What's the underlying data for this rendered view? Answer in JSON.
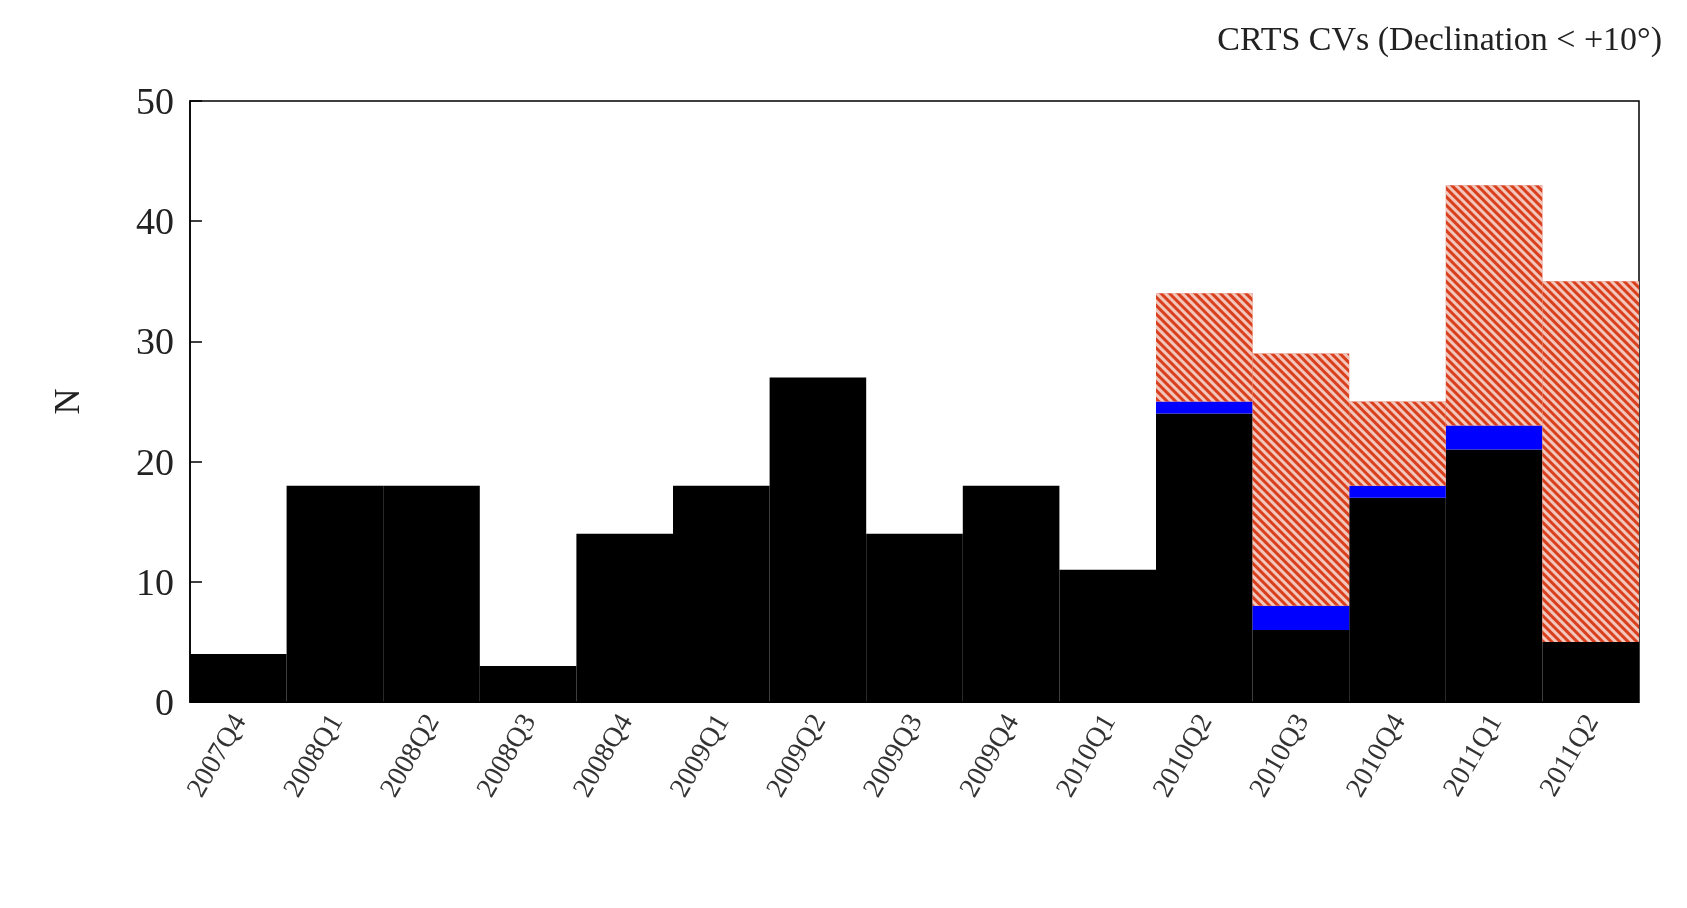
{
  "chart_data": {
    "type": "bar",
    "title": "CRTS CVs (Declination < +10°)",
    "ylabel": "N",
    "stacked": true,
    "grid": false,
    "categories": [
      "2007Q4",
      "2008Q1",
      "2008Q2",
      "2008Q3",
      "2008Q4",
      "2009Q1",
      "2009Q2",
      "2009Q3",
      "2009Q4",
      "2010Q1",
      "2010Q2",
      "2010Q3",
      "2010Q4",
      "2011Q1",
      "2011Q2"
    ],
    "series": [
      {
        "color": "#000000",
        "values": [
          4,
          18,
          18,
          3,
          14,
          18,
          27,
          14,
          18,
          11,
          24,
          6,
          17,
          21,
          5
        ]
      },
      {
        "color": "#0000ff",
        "values": [
          0,
          0,
          0,
          0,
          0,
          0,
          0,
          0,
          0,
          0,
          1,
          2,
          1,
          2,
          0
        ]
      },
      {
        "color": "#d8401e",
        "values": [
          0,
          0,
          0,
          0,
          0,
          0,
          0,
          0,
          0,
          0,
          9,
          21,
          7,
          20,
          30
        ]
      }
    ],
    "ylim": [
      0,
      50
    ],
    "yticks": [
      0,
      10,
      20,
      30,
      40,
      50
    ]
  }
}
